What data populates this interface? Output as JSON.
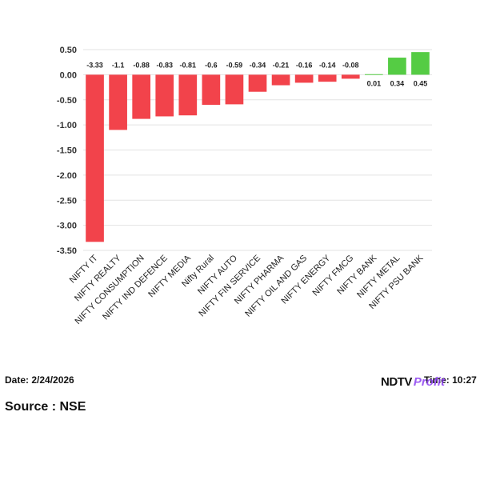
{
  "chart_data": {
    "type": "bar",
    "categories": [
      "NIFTY IT",
      "NIFTY REALTY",
      "NIFTY CONSUMPTION",
      "NIFTY IND DEFENCE",
      "NIFTY MEDIA",
      "Nifty Rural",
      "NIFTY AUTO",
      "NIFTY FIN SERVICE",
      "NIFTY PHARMA",
      "NIFTY OIL AND GAS",
      "NIFTY ENERGY",
      "NIFTY FMCG",
      "NIFTY BANK",
      "NIFTY METAL",
      "NIFTY PSU BANK"
    ],
    "values": [
      -3.33,
      -1.1,
      -0.88,
      -0.83,
      -0.81,
      -0.6,
      -0.59,
      -0.34,
      -0.21,
      -0.16,
      -0.14,
      -0.08,
      0.01,
      0.34,
      0.45
    ],
    "data_labels": [
      "-3.33",
      "-1.1",
      "-0.88",
      "-0.83",
      "-0.81",
      "-0.6",
      "-0.59",
      "-0.34",
      "-0.21",
      "-0.16",
      "-0.14",
      "-0.08",
      "0.01",
      "0.34",
      "0.45"
    ],
    "y_ticks": [
      "0.50",
      "0.00",
      "-0.50",
      "-1.00",
      "-1.50",
      "-2.00",
      "-2.50",
      "-3.00",
      "-3.50"
    ],
    "ylim": [
      -3.5,
      0.5
    ],
    "grid": true,
    "legend": "none",
    "colors": {
      "negative": "#f2434b",
      "positive": "#55cc44",
      "grid": "#e3e3e3"
    }
  },
  "footer": {
    "date": "Date: 2/24/2026",
    "time": "Time: 10:27",
    "source": "Source : NSE",
    "logo_primary": "NDTV",
    "logo_secondary": "Profit"
  }
}
